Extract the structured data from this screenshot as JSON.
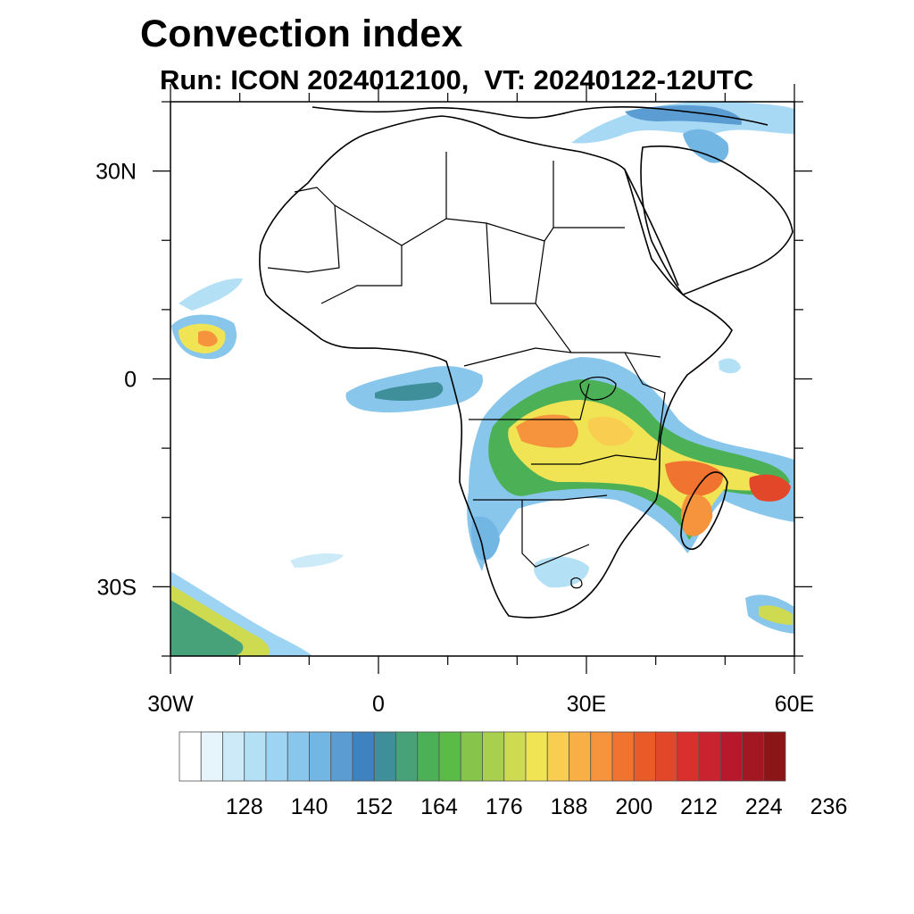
{
  "title": "Convection index",
  "subtitle": "Run: ICON 2024012100,  VT: 20240122-12UTC",
  "map": {
    "region": "Africa",
    "extent": {
      "lon_min": -30,
      "lon_max": 60,
      "lat_min": -40,
      "lat_max": 40
    },
    "lat_ticks": [
      {
        "value": 30,
        "label": "30N"
      },
      {
        "value": 0,
        "label": "0"
      },
      {
        "value": -30,
        "label": "30S"
      }
    ],
    "lon_ticks": [
      {
        "value": -30,
        "label": "30W"
      },
      {
        "value": 0,
        "label": "0"
      },
      {
        "value": 30,
        "label": "30E"
      },
      {
        "value": 60,
        "label": "60E"
      }
    ]
  },
  "colorbar": {
    "colors": [
      "#ffffff",
      "#e6f4fb",
      "#cdeaf8",
      "#b4e0f6",
      "#9dd4f3",
      "#88c6ec",
      "#72b6e4",
      "#5b9dd3",
      "#3e83bf",
      "#3f8f9b",
      "#47a27a",
      "#4bb056",
      "#5bbb47",
      "#86c44c",
      "#a9cf4e",
      "#cedb51",
      "#f0e455",
      "#f9cd4f",
      "#f8b046",
      "#f5943c",
      "#f0742f",
      "#e85a27",
      "#e2472a",
      "#d9302d",
      "#ca2330",
      "#b8182c",
      "#a31722",
      "#8c1517"
    ],
    "labels": [
      "128",
      "140",
      "152",
      "164",
      "176",
      "188",
      "200",
      "212",
      "224",
      "236"
    ],
    "label_values": [
      128,
      140,
      152,
      164,
      176,
      188,
      200,
      212,
      224,
      236
    ]
  }
}
